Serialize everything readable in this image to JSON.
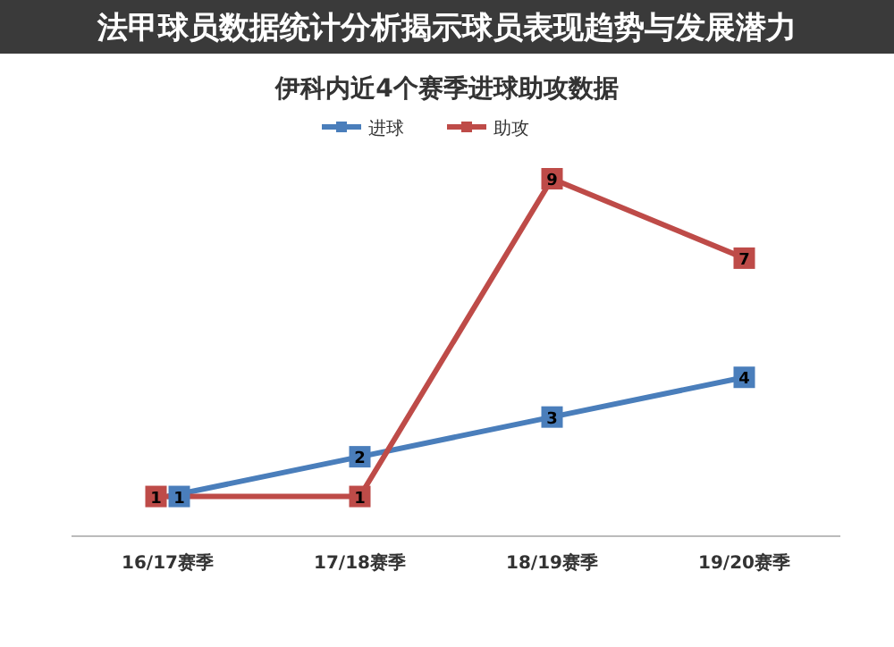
{
  "chart_data": {
    "type": "line",
    "title": "伊科内近4个赛季进球助攻数据",
    "categories": [
      "16/17赛季",
      "17/18赛季",
      "18/19赛季",
      "19/20赛季"
    ],
    "series": [
      {
        "name": "进球",
        "color": "#4a7ebb",
        "values": [
          1,
          2,
          3,
          4
        ]
      },
      {
        "name": "助攻",
        "color": "#be4b48",
        "values": [
          1,
          1,
          9,
          7
        ]
      }
    ],
    "data_labels": true,
    "marker": "square",
    "legend": "top",
    "grid": false,
    "annotations": [
      "法甲球员数据统计分析揭示球员表现趋势与发展潜力"
    ]
  }
}
